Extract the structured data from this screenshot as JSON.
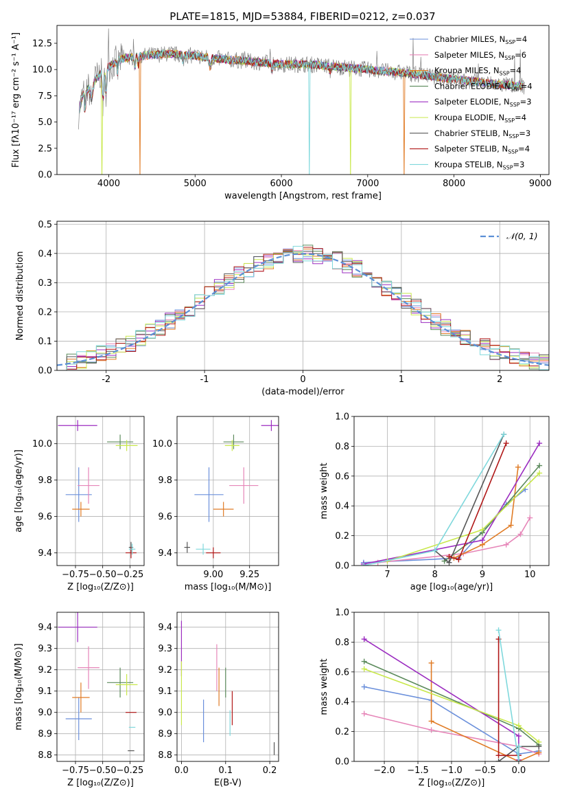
{
  "figure": {
    "title": "PLATE=1815, MJD=53884, FIBERID=0212, z=0.037"
  },
  "chart_data": [
    {
      "id": "spectrum",
      "type": "line",
      "title": "PLATE=1815, MJD=53884, FIBERID=0212, z=0.037",
      "xlabel": "wavelength [Angstrom, rest frame]",
      "ylabel": "Flux [fλ10⁻¹⁷ erg cm⁻² s⁻¹ A⁻¹]",
      "xlim": [
        3400,
        9100
      ],
      "ylim": [
        0,
        14.2
      ],
      "xticks": [
        4000,
        5000,
        6000,
        7000,
        8000,
        9000
      ],
      "yticks": [
        0.0,
        2.5,
        5.0,
        7.5,
        10.0,
        12.5
      ],
      "legend_position": "top-right",
      "series": [
        {
          "name": "Chabrier MILES, N",
          "sub": "SSP",
          "suffix": "=4",
          "color": "#6a8fdb"
        },
        {
          "name": "Salpeter MILES, N",
          "sub": "SSP",
          "suffix": "=6",
          "color": "#e685b8"
        },
        {
          "name": "Kroupa MILES, N",
          "sub": "SSP",
          "suffix": "=4",
          "color": "#e07b25"
        },
        {
          "name": "Chabrier ELODIE, N",
          "sub": "SSP",
          "suffix": "=4",
          "color": "#5b8a5b"
        },
        {
          "name": "Salpeter ELODIE, N",
          "sub": "SSP",
          "suffix": "=3",
          "color": "#9b2cc0"
        },
        {
          "name": "Kroupa ELODIE, N",
          "sub": "SSP",
          "suffix": "=4",
          "color": "#c8e84a"
        },
        {
          "name": "Chabrier STELIB, N",
          "sub": "SSP",
          "suffix": "=3",
          "color": "#555555"
        },
        {
          "name": "Salpeter STELIB, N",
          "sub": "SSP",
          "suffix": "=4",
          "color": "#b01717"
        },
        {
          "name": "Kroupa STELIB, N",
          "sub": "SSP",
          "suffix": "=3",
          "color": "#7fd8dc"
        }
      ],
      "data_curve": {
        "color": "#808080"
      },
      "continuum_profile": {
        "x": [
          3650,
          3700,
          3800,
          3900,
          4000,
          4100,
          4200,
          4300,
          4500,
          4700,
          5000,
          5300,
          5600,
          6000,
          6300,
          6600,
          7000,
          7400,
          7800,
          8200,
          8500,
          8800
        ],
        "y": [
          5.9,
          7.6,
          8.6,
          9.6,
          10.3,
          10.8,
          11.1,
          11.2,
          11.4,
          11.5,
          11.3,
          11.0,
          10.8,
          10.5,
          10.5,
          10.3,
          10.0,
          9.7,
          9.3,
          8.9,
          8.6,
          8.4
        ]
      },
      "model_dropouts": [
        {
          "x": 3920,
          "series": "Kroupa ELODIE, N"
        },
        {
          "x": 4360,
          "series": "Kroupa MILES, N"
        },
        {
          "x": 6320,
          "series": "Kroupa STELIB, N"
        },
        {
          "x": 6800,
          "series": "Kroupa ELODIE, N"
        },
        {
          "x": 7420,
          "series": "Kroupa MILES, N"
        }
      ]
    },
    {
      "id": "residual-histogram",
      "type": "step-histogram",
      "xlabel": "(data-model)/error",
      "ylabel": "Normed distribution",
      "xlim": [
        -2.5,
        2.5
      ],
      "ylim": [
        0,
        0.51
      ],
      "xticks": [
        -2,
        -1,
        0,
        1,
        2
      ],
      "yticks": [
        0.0,
        0.1,
        0.2,
        0.3,
        0.4,
        0.5
      ],
      "bin_width": 0.1,
      "reference": {
        "label": "𝒩(0, 1)",
        "color": "#5b8fd6",
        "mu": 0,
        "sigma": 1
      },
      "legend_position": "top-right",
      "series_colors": [
        "#6a8fdb",
        "#e685b8",
        "#e07b25",
        "#5b8a5b",
        "#9b2cc0",
        "#c8e84a",
        "#555555",
        "#b01717",
        "#7fd8dc"
      ]
    },
    {
      "id": "age-vs-Z",
      "type": "errorbar",
      "xlabel": "Z [log₁₀(Z/Z⊙)]",
      "ylabel": "age  [log₁₀(age/yr)]",
      "xlim": [
        -0.92,
        -0.12
      ],
      "ylim": [
        9.33,
        10.15
      ],
      "xticks": [
        -0.75,
        -0.5,
        -0.25
      ],
      "xtick_labels": [
        "−0.75",
        "−0.50",
        "−0.25"
      ],
      "yticks": [
        9.4,
        9.6,
        9.8,
        10.0
      ],
      "points": [
        {
          "x": -0.72,
          "xerr": 0.12,
          "y": 9.72,
          "yerr": 0.15,
          "color": "#6a8fdb"
        },
        {
          "x": -0.63,
          "xerr": 0.1,
          "y": 9.77,
          "yerr": 0.1,
          "color": "#e685b8"
        },
        {
          "x": -0.7,
          "xerr": 0.08,
          "y": 9.64,
          "yerr": 0.04,
          "color": "#e07b25"
        },
        {
          "x": -0.34,
          "xerr": 0.12,
          "y": 10.01,
          "yerr": 0.04,
          "color": "#5b8a5b"
        },
        {
          "x": -0.73,
          "xerr": 0.18,
          "y": 10.1,
          "yerr": 0.03,
          "color": "#9b2cc0"
        },
        {
          "x": -0.28,
          "xerr": 0.1,
          "y": 9.99,
          "yerr": 0.03,
          "color": "#c8e84a"
        },
        {
          "x": -0.24,
          "xerr": 0.02,
          "y": 9.43,
          "yerr": 0.03,
          "color": "#555555"
        },
        {
          "x": -0.24,
          "xerr": 0.05,
          "y": 9.4,
          "yerr": 0.03,
          "color": "#b01717"
        },
        {
          "x": -0.23,
          "xerr": 0.03,
          "y": 9.42,
          "yerr": 0.03,
          "color": "#7fd8dc"
        }
      ]
    },
    {
      "id": "age-vs-mass",
      "type": "errorbar",
      "xlabel": "mass [log₁₀(M/M⊙)]",
      "ylabel": "",
      "xlim": [
        8.75,
        9.45
      ],
      "ylim": [
        9.33,
        10.15
      ],
      "xticks": [
        9.0,
        9.25
      ],
      "xtick_labels": [
        "9.00",
        "9.25"
      ],
      "yticks": [
        9.4,
        9.6,
        9.8,
        10.0
      ],
      "points": [
        {
          "x": 8.97,
          "xerr": 0.1,
          "y": 9.72,
          "yerr": 0.15,
          "color": "#6a8fdb"
        },
        {
          "x": 9.21,
          "xerr": 0.1,
          "y": 9.77,
          "yerr": 0.1,
          "color": "#e685b8"
        },
        {
          "x": 9.07,
          "xerr": 0.07,
          "y": 9.64,
          "yerr": 0.04,
          "color": "#e07b25"
        },
        {
          "x": 9.14,
          "xerr": 0.07,
          "y": 10.01,
          "yerr": 0.04,
          "color": "#5b8a5b"
        },
        {
          "x": 9.4,
          "xerr": 0.07,
          "y": 10.1,
          "yerr": 0.03,
          "color": "#9b2cc0"
        },
        {
          "x": 9.13,
          "xerr": 0.05,
          "y": 9.99,
          "yerr": 0.03,
          "color": "#c8e84a"
        },
        {
          "x": 8.82,
          "xerr": 0.02,
          "y": 9.43,
          "yerr": 0.03,
          "color": "#555555"
        },
        {
          "x": 9.0,
          "xerr": 0.05,
          "y": 9.4,
          "yerr": 0.03,
          "color": "#b01717"
        },
        {
          "x": 8.93,
          "xerr": 0.05,
          "y": 9.42,
          "yerr": 0.03,
          "color": "#7fd8dc"
        }
      ]
    },
    {
      "id": "mass-weight-vs-age",
      "type": "line",
      "xlabel": "age  [log₁₀(age/yr)]",
      "ylabel": "mass weight",
      "xlim": [
        6.3,
        10.4
      ],
      "ylim": [
        0,
        1.0
      ],
      "xticks": [
        7,
        8,
        9,
        10
      ],
      "yticks": [
        0.0,
        0.2,
        0.4,
        0.6,
        0.8,
        1.0
      ],
      "series": [
        {
          "color": "#6a8fdb",
          "x": [
            6.5,
            8.5,
            9.5,
            9.9
          ],
          "y": [
            0.02,
            0.05,
            0.41,
            0.51
          ]
        },
        {
          "color": "#e685b8",
          "x": [
            6.8,
            8.6,
            9.5,
            9.8,
            10.0
          ],
          "y": [
            0.02,
            0.08,
            0.14,
            0.21,
            0.32
          ]
        },
        {
          "color": "#e07b25",
          "x": [
            8.4,
            9.0,
            9.6,
            9.75
          ],
          "y": [
            0.05,
            0.14,
            0.27,
            0.66
          ]
        },
        {
          "color": "#5b8a5b",
          "x": [
            8.2,
            9.0,
            10.2
          ],
          "y": [
            0.03,
            0.22,
            0.67
          ]
        },
        {
          "color": "#9b2cc0",
          "x": [
            6.5,
            9.0,
            10.2
          ],
          "y": [
            0.01,
            0.17,
            0.82
          ]
        },
        {
          "color": "#c8e84a",
          "x": [
            7.0,
            9.0,
            10.2
          ],
          "y": [
            0.03,
            0.24,
            0.62
          ]
        },
        {
          "color": "#555555",
          "x": [
            8.0,
            8.3,
            9.45
          ],
          "y": [
            0.1,
            0.02,
            0.88
          ]
        },
        {
          "color": "#b01717",
          "x": [
            8.3,
            8.5,
            9.5
          ],
          "y": [
            0.06,
            0.04,
            0.82
          ]
        },
        {
          "color": "#7fd8dc",
          "x": [
            6.5,
            8.0,
            9.45
          ],
          "y": [
            0.0,
            0.1,
            0.88
          ]
        }
      ]
    },
    {
      "id": "mass-vs-Z",
      "type": "errorbar",
      "xlabel": "Z [log₁₀(Z/Z⊙)]",
      "ylabel": "mass [log₁₀(M/M⊙)]",
      "xlim": [
        -0.92,
        -0.12
      ],
      "ylim": [
        8.77,
        9.47
      ],
      "xticks": [
        -0.75,
        -0.5,
        -0.25
      ],
      "xtick_labels": [
        "−0.75",
        "−0.50",
        "−0.25"
      ],
      "yticks": [
        8.8,
        8.9,
        9.0,
        9.1,
        9.2,
        9.3,
        9.4
      ],
      "points": [
        {
          "x": -0.72,
          "xerr": 0.12,
          "y": 8.97,
          "yerr": 0.1,
          "color": "#6a8fdb"
        },
        {
          "x": -0.63,
          "xerr": 0.1,
          "y": 9.21,
          "yerr": 0.1,
          "color": "#e685b8"
        },
        {
          "x": -0.7,
          "xerr": 0.08,
          "y": 9.07,
          "yerr": 0.07,
          "color": "#e07b25"
        },
        {
          "x": -0.34,
          "xerr": 0.12,
          "y": 9.14,
          "yerr": 0.07,
          "color": "#5b8a5b"
        },
        {
          "x": -0.73,
          "xerr": 0.18,
          "y": 9.4,
          "yerr": 0.07,
          "color": "#9b2cc0"
        },
        {
          "x": -0.28,
          "xerr": 0.1,
          "y": 9.13,
          "yerr": 0.05,
          "color": "#c8e84a"
        },
        {
          "x": -0.24,
          "xerr": 0.03,
          "y": 8.82,
          "yerr": 0.0,
          "color": "#555555"
        },
        {
          "x": -0.24,
          "xerr": 0.05,
          "y": 9.0,
          "yerr": 0.0,
          "color": "#b01717"
        },
        {
          "x": -0.23,
          "xerr": 0.03,
          "y": 8.93,
          "yerr": 0.0,
          "color": "#7fd8dc"
        }
      ]
    },
    {
      "id": "mass-vs-EBV",
      "type": "errorbar",
      "xlabel": "E(B-V)",
      "ylabel": "",
      "xlim": [
        -0.01,
        0.22
      ],
      "ylim": [
        8.77,
        9.47
      ],
      "xticks": [
        0.0,
        0.1,
        0.2
      ],
      "xtick_labels": [
        "0.0",
        "0.1",
        "0.2"
      ],
      "yticks": [
        8.8,
        8.9,
        9.0,
        9.1,
        9.2,
        9.3,
        9.4
      ],
      "points": [
        {
          "x": 0.05,
          "xerr": 0,
          "y": 8.96,
          "yerr": 0.1,
          "color": "#6a8fdb"
        },
        {
          "x": 0.08,
          "xerr": 0,
          "y": 9.21,
          "yerr": 0.11,
          "color": "#e685b8"
        },
        {
          "x": 0.085,
          "xerr": 0,
          "y": 9.12,
          "yerr": 0.09,
          "color": "#e07b25"
        },
        {
          "x": 0.1,
          "xerr": 0,
          "y": 9.14,
          "yerr": 0.07,
          "color": "#5b8a5b"
        },
        {
          "x": 0.0,
          "xerr": 0,
          "y": 9.3,
          "yerr": 0.13,
          "color": "#9b2cc0"
        },
        {
          "x": 0.0,
          "xerr": 0,
          "y": 9.09,
          "yerr": 0.15,
          "color": "#c8e84a"
        },
        {
          "x": 0.21,
          "xerr": 0,
          "y": 8.83,
          "yerr": 0.03,
          "color": "#555555"
        },
        {
          "x": 0.115,
          "xerr": 0,
          "y": 9.02,
          "yerr": 0.08,
          "color": "#b01717"
        },
        {
          "x": 0.11,
          "xerr": 0,
          "y": 8.95,
          "yerr": 0.06,
          "color": "#7fd8dc"
        }
      ]
    },
    {
      "id": "mass-weight-vs-Z",
      "type": "line",
      "xlabel": "Z [log₁₀(Z/Z⊙)]",
      "ylabel": "mass weight",
      "xlim": [
        -2.45,
        0.45
      ],
      "ylim": [
        0,
        1.0
      ],
      "xticks": [
        -2.0,
        -1.5,
        -1.0,
        -0.5,
        0.0
      ],
      "xtick_labels": [
        "−2.0",
        "−1.5",
        "−1.0",
        "−0.5",
        "0.0"
      ],
      "yticks": [
        0.0,
        0.2,
        0.4,
        0.6,
        0.8,
        1.0
      ],
      "series": [
        {
          "color": "#6a8fdb",
          "x": [
            -2.3,
            -1.3,
            0.0,
            0.3
          ],
          "y": [
            0.5,
            0.41,
            0.05,
            0.07
          ]
        },
        {
          "color": "#e685b8",
          "x": [
            -2.3,
            -1.3,
            0.0,
            0.3
          ],
          "y": [
            0.32,
            0.21,
            0.1,
            0.05
          ]
        },
        {
          "color": "#e07b25",
          "x": [
            -1.3,
            -1.3,
            0.0,
            0.3
          ],
          "y": [
            0.66,
            0.27,
            0.0,
            0.06
          ]
        },
        {
          "color": "#5b8a5b",
          "x": [
            -2.3,
            0.0,
            0.3
          ],
          "y": [
            0.67,
            0.22,
            0.11
          ]
        },
        {
          "color": "#9b2cc0",
          "x": [
            -2.3,
            0.0,
            0.0
          ],
          "y": [
            0.82,
            0.17,
            0.01
          ]
        },
        {
          "color": "#c8e84a",
          "x": [
            -2.3,
            0.0,
            0.3
          ],
          "y": [
            0.62,
            0.24,
            0.13
          ]
        },
        {
          "color": "#555555",
          "x": [
            -0.3,
            0.0,
            0.3
          ],
          "y": [
            0.0,
            0.1,
            0.1
          ]
        },
        {
          "color": "#b01717",
          "x": [
            -0.3,
            -0.3,
            0.0
          ],
          "y": [
            0.82,
            0.04,
            0.04
          ]
        },
        {
          "color": "#7fd8dc",
          "x": [
            -0.3,
            0.0,
            0.0
          ],
          "y": [
            0.88,
            0.0,
            0.1
          ]
        }
      ]
    }
  ]
}
